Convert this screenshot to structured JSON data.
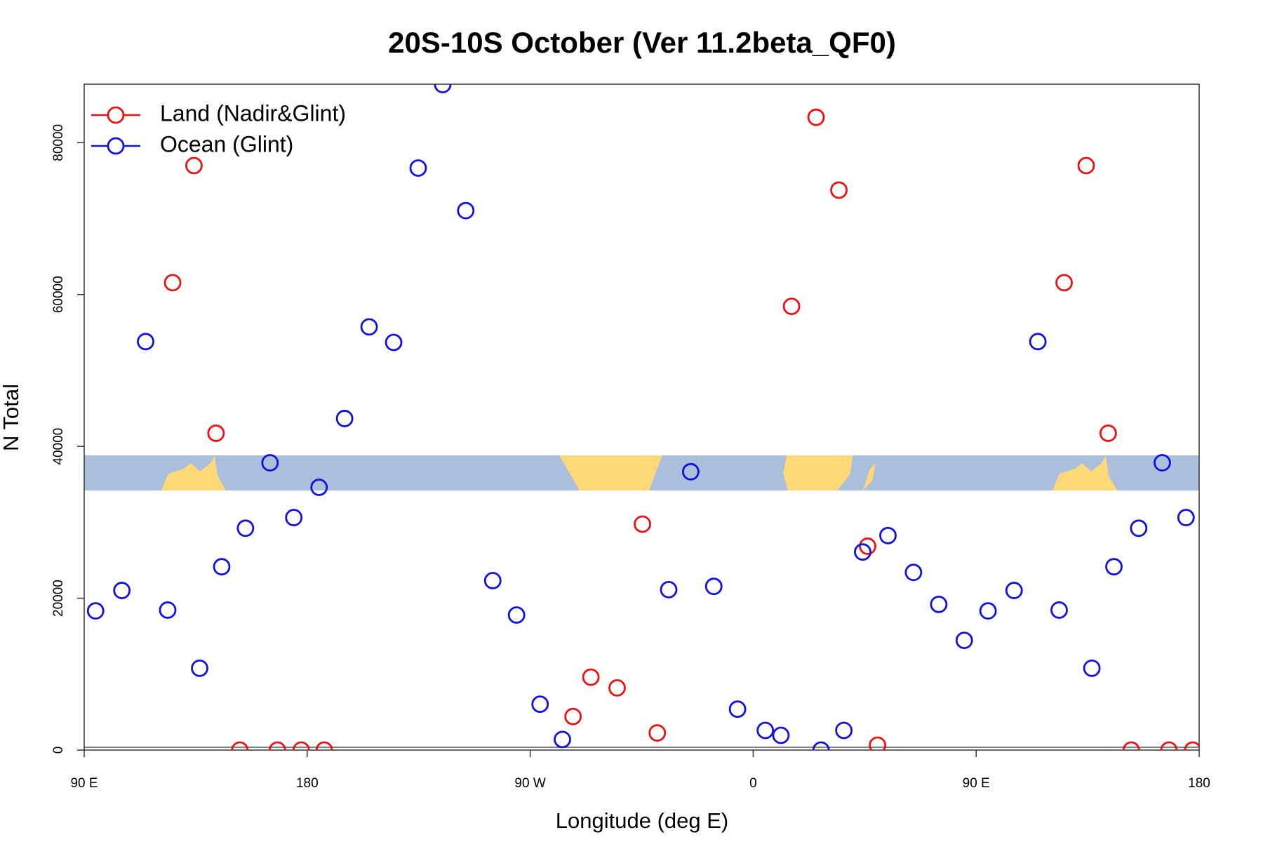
{
  "chart_data": {
    "type": "scatter",
    "title": "20S-10S October (Ver 11.2beta_QF0)",
    "x_label": "Longitude (deg E)",
    "y_label": "N Total",
    "xlim": [
      90,
      540
    ],
    "xticks": [
      {
        "value": 90,
        "label": "90 E"
      },
      180,
      {
        "value": 270,
        "label": "90 W"
      },
      {
        "value": 360,
        "label": "0"
      },
      {
        "value": 450,
        "label": "90 E"
      },
      {
        "value": 540,
        "label": "180"
      }
    ],
    "ylim": [
      0,
      87700
    ],
    "yticks": [
      0,
      20000,
      40000,
      60000,
      80000
    ],
    "legend": "upper left",
    "series": [
      {
        "name": "Land (Nadir&Glint)",
        "color": "#ee1111",
        "x": [
          134.3,
          125.7,
          143.2,
          152.8,
          168,
          177.6,
          186.9,
          287.3,
          294.5,
          305.1,
          315.3,
          321.3,
          375.5,
          385.4,
          394.6,
          406.2,
          410.2,
          485.5,
          494.4,
          503.3,
          512.6,
          527.8,
          537.4
        ],
        "values": [
          76980,
          61560,
          41730,
          0,
          0,
          0,
          0,
          4420,
          9600,
          8190,
          29760,
          2260,
          58440,
          83340,
          73750,
          26850,
          650,
          61560,
          76980,
          41730,
          0,
          0,
          0
        ]
      },
      {
        "name": "Ocean (Glint)",
        "color": "#1111dd",
        "x": [
          94.6,
          105.2,
          114.8,
          123.7,
          136.6,
          145.5,
          155.1,
          165,
          174.6,
          184.8,
          195.1,
          205,
          214.9,
          224.8,
          234.7,
          244,
          254.9,
          264.5,
          274,
          283,
          325.9,
          334.8,
          344.1,
          353.7,
          364.9,
          371.2,
          387.4,
          396.6,
          404.2,
          414.4,
          424.7,
          434.9,
          445.2,
          454.8,
          465.3,
          474.9,
          483.5,
          496.7,
          505.6,
          515.6,
          525.1,
          534.7
        ],
        "values": [
          18330,
          21020,
          53800,
          18440,
          10780,
          24150,
          29220,
          37840,
          30620,
          34610,
          43670,
          55740,
          53690,
          76660,
          87650,
          71050,
          22320,
          17790,
          6040,
          1400,
          21130,
          36660,
          21560,
          5390,
          2590,
          1940,
          0,
          2590,
          26090,
          28250,
          23400,
          19190,
          14450,
          18330,
          21020,
          53800,
          18440,
          10780,
          24150,
          29220,
          37840,
          30620
        ]
      }
    ]
  }
}
